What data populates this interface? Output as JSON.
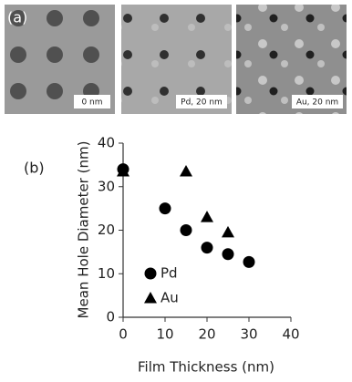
{
  "figure": {
    "panel_a": "(a)",
    "image_labels": [
      "0 nm",
      "Pd, 20 nm",
      "Au, 20 nm"
    ],
    "panel_b": "(b)"
  },
  "chart_data": {
    "type": "scatter",
    "xlabel": "Film Thickness (nm)",
    "ylabel": "Mean Hole Diameter (nm)",
    "xlim": [
      0,
      40
    ],
    "xticks": [
      0,
      10,
      20,
      30,
      40
    ],
    "ylim": [
      0,
      40
    ],
    "yticks": [
      0,
      10,
      20,
      30,
      40
    ],
    "grid": false,
    "legend": "lower left",
    "series": [
      {
        "name": "Pd",
        "color": "#000000",
        "marker": "circle",
        "x": [
          0,
          10,
          15,
          20,
          25,
          30
        ],
        "values": [
          34,
          25,
          20,
          16,
          14.5,
          12.7
        ]
      },
      {
        "name": "Au",
        "color": "#000000",
        "marker": "triangle",
        "x": [
          0,
          15,
          20,
          25
        ],
        "values": [
          33.5,
          33.5,
          23,
          19.5
        ]
      }
    ]
  }
}
